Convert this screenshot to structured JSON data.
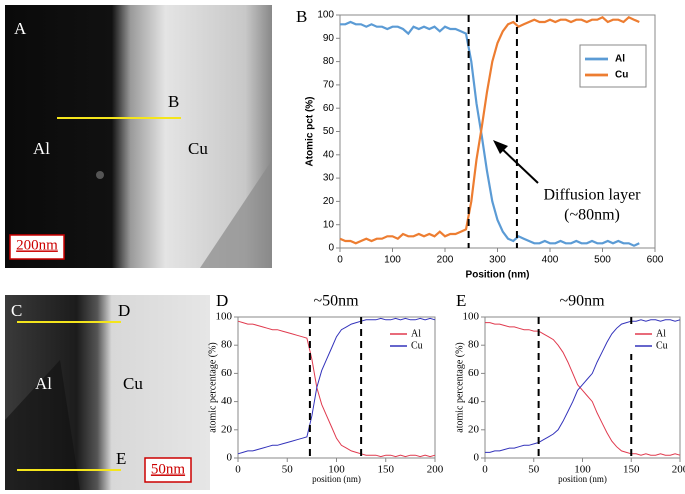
{
  "images": [
    {
      "panel": "A",
      "labels": [
        "B",
        "Al",
        "Cu"
      ],
      "scale_bar": "200nm"
    },
    {
      "panel": "C",
      "labels": [
        "D",
        "E",
        "Al",
        "Cu"
      ],
      "scale_bar": "50nm"
    }
  ],
  "chart_data": [
    {
      "type": "line",
      "panel": "B",
      "xlabel": "Position (nm)",
      "ylabel": "Atomic pct (%)",
      "annotation": [
        "Diffusion layer",
        "(~80nm)"
      ],
      "xlim": [
        0,
        600
      ],
      "xticks": [
        0,
        100,
        200,
        300,
        400,
        500,
        600
      ],
      "ylim": [
        0,
        100
      ],
      "yticks": [
        0,
        10,
        20,
        30,
        40,
        50,
        60,
        70,
        80,
        90,
        100
      ],
      "vlines": [
        245,
        337
      ],
      "legend": "right",
      "x": [
        0,
        10,
        20,
        30,
        40,
        50,
        60,
        70,
        80,
        90,
        100,
        110,
        120,
        130,
        140,
        150,
        160,
        170,
        180,
        190,
        200,
        210,
        220,
        230,
        240,
        250,
        260,
        270,
        280,
        290,
        300,
        310,
        320,
        330,
        340,
        350,
        360,
        370,
        380,
        390,
        400,
        410,
        420,
        430,
        440,
        450,
        460,
        470,
        480,
        490,
        500,
        510,
        520,
        530,
        540,
        550,
        560,
        570
      ],
      "series": [
        {
          "name": "Al",
          "color": "#5b9bd5",
          "values": [
            96,
            96,
            97,
            96,
            96,
            95,
            96,
            95,
            95,
            94,
            95,
            95,
            94,
            92,
            95,
            94,
            95,
            94,
            95,
            93,
            95,
            94,
            94,
            93,
            92,
            80,
            62,
            48,
            33,
            20,
            12,
            7,
            4,
            3,
            5,
            4,
            3,
            2,
            2,
            3,
            2,
            2,
            3,
            2,
            2,
            3,
            2,
            2,
            3,
            2,
            2,
            3,
            2,
            3,
            2,
            2,
            1,
            2
          ]
        },
        {
          "name": "Cu",
          "color": "#ed7d31",
          "values": [
            4,
            3,
            3,
            2,
            3,
            4,
            3,
            4,
            4,
            5,
            5,
            4,
            6,
            5,
            5,
            6,
            5,
            6,
            5,
            7,
            5,
            6,
            6,
            7,
            8,
            20,
            38,
            52,
            67,
            80,
            88,
            93,
            96,
            97,
            95,
            96,
            97,
            98,
            97,
            97,
            98,
            97,
            98,
            98,
            97,
            98,
            98,
            97,
            98,
            98,
            99,
            97,
            98,
            98,
            97,
            99,
            98,
            97
          ]
        }
      ]
    },
    {
      "type": "line",
      "panel": "D",
      "title": "~50nm",
      "xlabel": "position (nm)",
      "ylabel": "atomic percentage (%)",
      "xlim": [
        0,
        200
      ],
      "xticks": [
        0,
        50,
        100,
        150,
        200
      ],
      "ylim": [
        0,
        100
      ],
      "yticks": [
        0,
        20,
        40,
        60,
        80,
        100
      ],
      "vlines": [
        73,
        125
      ],
      "legend": "right",
      "x": [
        0,
        5,
        10,
        15,
        20,
        25,
        30,
        35,
        40,
        45,
        50,
        55,
        60,
        65,
        70,
        75,
        80,
        85,
        90,
        95,
        100,
        105,
        110,
        115,
        120,
        125,
        130,
        135,
        140,
        145,
        150,
        155,
        160,
        165,
        170,
        175,
        180,
        185,
        190,
        195,
        200
      ],
      "series": [
        {
          "name": "Al",
          "color": "#e03a4e",
          "values": [
            97,
            96,
            95,
            95,
            94,
            93,
            92,
            91,
            91,
            90,
            89,
            88,
            87,
            86,
            85,
            70,
            50,
            38,
            30,
            22,
            14,
            9,
            7,
            5,
            4,
            3,
            2,
            2,
            2,
            1,
            2,
            2,
            1,
            2,
            1,
            2,
            2,
            1,
            2,
            1,
            2
          ]
        },
        {
          "name": "Cu",
          "color": "#3333bb",
          "values": [
            3,
            4,
            5,
            5,
            6,
            7,
            8,
            9,
            9,
            10,
            11,
            12,
            13,
            14,
            15,
            30,
            50,
            62,
            70,
            78,
            86,
            91,
            93,
            95,
            96,
            97,
            98,
            98,
            98,
            99,
            98,
            98,
            99,
            98,
            99,
            98,
            98,
            99,
            98,
            99,
            98
          ]
        }
      ]
    },
    {
      "type": "line",
      "panel": "E",
      "title": "~90nm",
      "xlabel": "position (nm)",
      "ylabel": "atomic percentage (%)",
      "xlim": [
        0,
        200
      ],
      "xticks": [
        0,
        50,
        100,
        150,
        200
      ],
      "ylim": [
        0,
        100
      ],
      "yticks": [
        0,
        20,
        40,
        60,
        80,
        100
      ],
      "vlines": [
        55,
        150
      ],
      "legend": "right",
      "x": [
        0,
        5,
        10,
        15,
        20,
        25,
        30,
        35,
        40,
        45,
        50,
        55,
        60,
        65,
        70,
        75,
        80,
        85,
        90,
        95,
        100,
        105,
        110,
        115,
        120,
        125,
        130,
        135,
        140,
        145,
        150,
        155,
        160,
        165,
        170,
        175,
        180,
        185,
        190,
        195,
        200
      ],
      "series": [
        {
          "name": "Al",
          "color": "#e03a4e",
          "values": [
            96,
            96,
            95,
            95,
            94,
            93,
            93,
            92,
            91,
            91,
            90,
            90,
            88,
            86,
            84,
            80,
            75,
            68,
            60,
            52,
            48,
            44,
            40,
            32,
            25,
            18,
            12,
            8,
            5,
            4,
            3,
            3,
            2,
            3,
            2,
            2,
            3,
            2,
            2,
            3,
            2
          ]
        },
        {
          "name": "Cu",
          "color": "#3333bb",
          "values": [
            4,
            4,
            5,
            5,
            6,
            7,
            7,
            8,
            9,
            9,
            10,
            11,
            13,
            15,
            17,
            20,
            26,
            33,
            40,
            48,
            52,
            56,
            60,
            68,
            75,
            82,
            88,
            92,
            95,
            96,
            97,
            97,
            98,
            97,
            98,
            98,
            97,
            98,
            98,
            97,
            98
          ]
        }
      ]
    }
  ]
}
